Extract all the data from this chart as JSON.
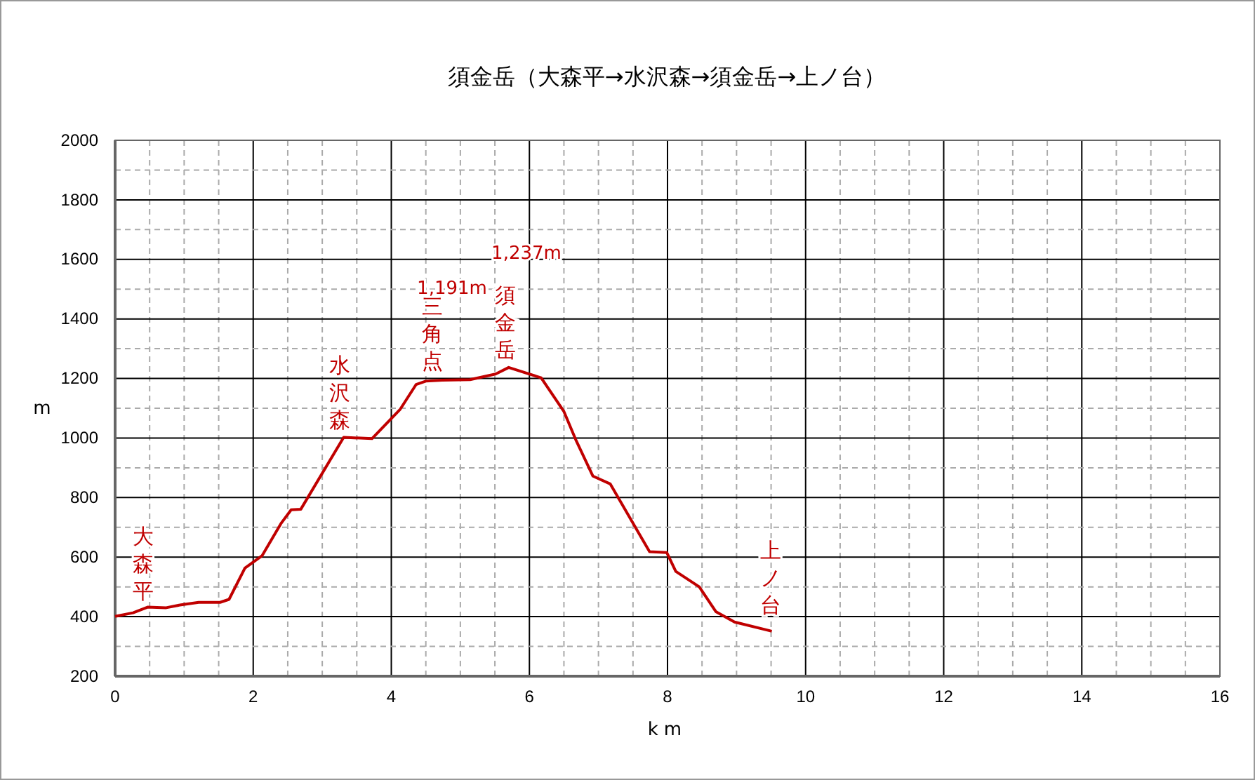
{
  "chart_data": {
    "type": "line",
    "title": "須金岳（大森平→水沢森→須金岳→上ノ台）",
    "xlabel": "km",
    "ylabel": "m",
    "x": [
      0,
      0.26,
      0.47,
      0.74,
      0.94,
      1.21,
      1.52,
      1.65,
      1.88,
      2.13,
      2.4,
      2.55,
      2.69,
      3.31,
      3.72,
      4.13,
      4.36,
      4.5,
      4.74,
      5.14,
      5.51,
      5.7,
      6.17,
      6.5,
      6.67,
      6.92,
      7.17,
      7.74,
      7.99,
      8.12,
      8.46,
      8.7,
      8.97,
      9.51
    ],
    "series": [
      {
        "color": "#c00000",
        "values": [
          401,
          413,
          432,
          430,
          439,
          448,
          448,
          458,
          563,
          605,
          712,
          759,
          761,
          1002,
          998,
          1097,
          1180,
          1191,
          1194,
          1196,
          1215,
          1237,
          1202,
          1089,
          995,
          872,
          846,
          618,
          615,
          552,
          500,
          417,
          382,
          351
        ]
      }
    ],
    "xlim": [
      0,
      16
    ],
    "xticks": [
      0,
      2,
      4,
      6,
      8,
      10,
      12,
      14,
      16
    ],
    "ylim": [
      200,
      2000
    ],
    "yticks": [
      200,
      400,
      600,
      800,
      1000,
      1200,
      1400,
      1600,
      1800,
      2000
    ],
    "grid": true,
    "marker": "none",
    "line_style": "solid",
    "annotations": [
      "大森平",
      "水沢森",
      "1,191m",
      "三角点",
      "1,237m",
      "須金岳",
      "上ノ台"
    ]
  }
}
